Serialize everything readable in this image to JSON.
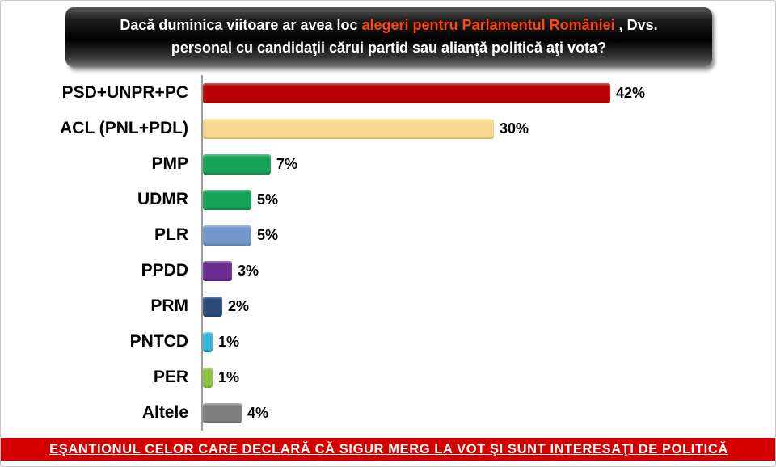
{
  "header": {
    "line1_pre": "Dacă duminica viitoare ar avea loc ",
    "line1_highlight": "alegeri pentru Parlamentul României",
    "line1_post": " , Dvs.",
    "line2": "personal cu candidaţii cărui partid sau alianţă politică  aţi vota?",
    "highlight_color": "#ff4512"
  },
  "chart_data": {
    "type": "bar",
    "orientation": "horizontal",
    "title": "Dacă duminica viitoare ar avea loc alegeri pentru Parlamentul României , Dvs. personal cu candidaţii cărui partid sau alianţă politică aţi vota?",
    "categories": [
      "PSD+UNPR+PC",
      "ACL (PNL+PDL)",
      "PMP",
      "UDMR",
      "PLR",
      "PPDD",
      "PRM",
      "PNTCD",
      "PER",
      "Altele"
    ],
    "values": [
      42,
      30,
      7,
      5,
      5,
      3,
      2,
      1,
      1,
      4
    ],
    "value_labels": [
      "42%",
      "30%",
      "7%",
      "5%",
      "5%",
      "3%",
      "2%",
      "1%",
      "1%",
      "4%"
    ],
    "bar_colors": [
      "#b80000",
      "#f6d98f",
      "#15a357",
      "#15a357",
      "#7396cc",
      "#6b2d90",
      "#2a4a77",
      "#2fb7dd",
      "#8dc63f",
      "#7f7f7f"
    ],
    "xlim": [
      0,
      45
    ],
    "grid": false,
    "legend": "none"
  },
  "footer": {
    "text": "EŞANTIONUL CELOR CARE DECLARĂ CĂ SIGUR MERG LA VOT ŞI SUNT INTERESAŢI DE POLITICĂ",
    "background_color": "#d40000"
  }
}
